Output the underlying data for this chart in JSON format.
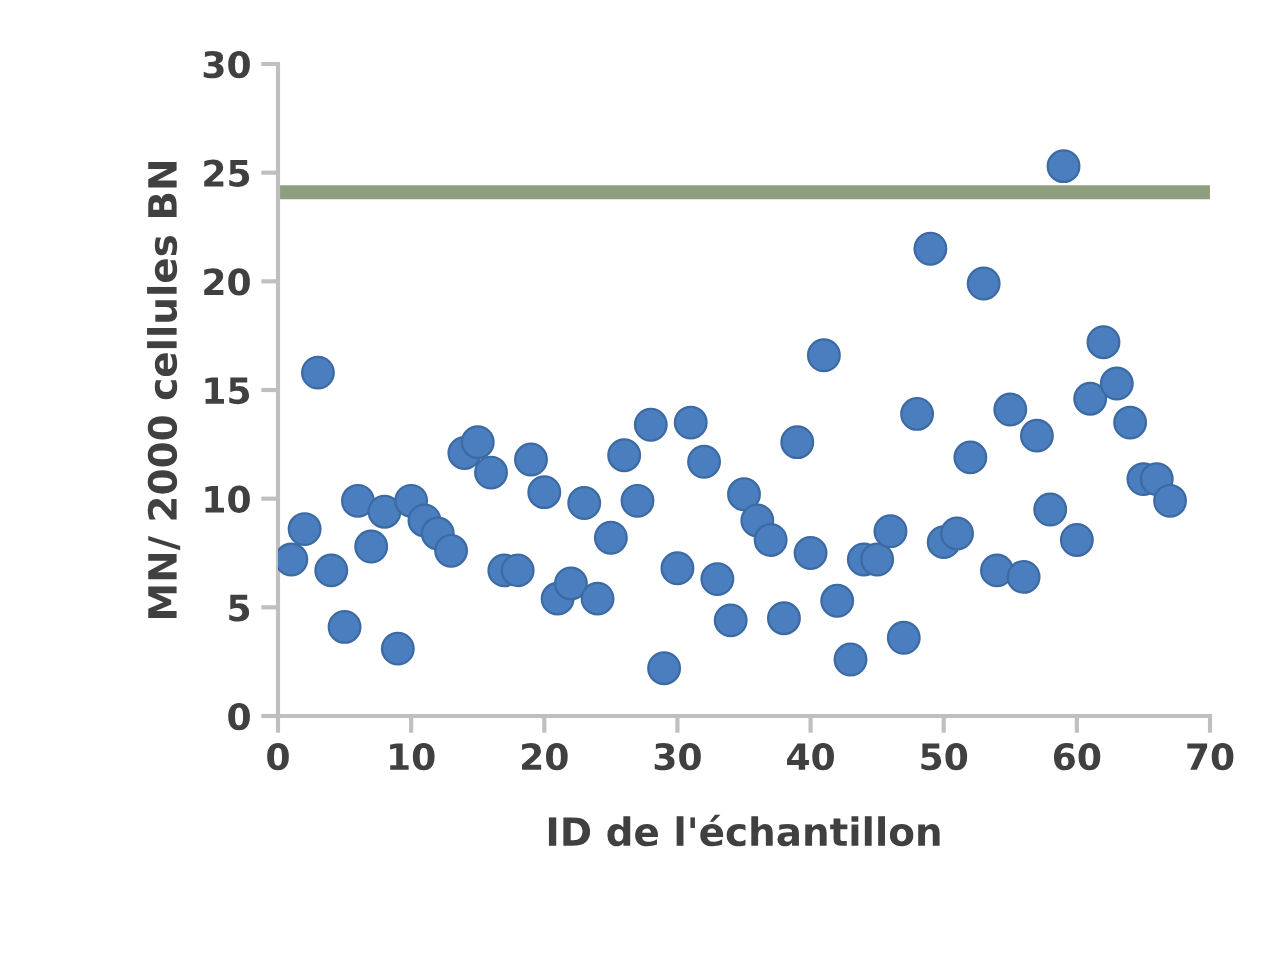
{
  "chart_data": {
    "type": "scatter",
    "xlabel": "ID de l'échantillon",
    "ylabel": "MN/ 2000 cellules BN",
    "x": [
      1,
      2,
      3,
      4,
      5,
      6,
      7,
      8,
      9,
      10,
      11,
      12,
      13,
      14,
      15,
      16,
      17,
      18,
      19,
      20,
      21,
      22,
      23,
      24,
      25,
      26,
      27,
      28,
      29,
      30,
      31,
      32,
      33,
      34,
      35,
      36,
      37,
      38,
      39,
      40,
      41,
      42,
      43,
      44,
      45,
      46,
      47,
      48,
      49,
      50,
      51,
      52,
      53,
      54,
      55,
      56,
      57,
      58,
      59,
      60,
      61,
      62,
      63,
      64,
      65,
      66,
      67
    ],
    "series": [
      {
        "color": "#4a7ebf",
        "values": [
          7.2,
          8.6,
          15.8,
          6.7,
          4.1,
          9.9,
          7.8,
          9.4,
          3.1,
          9.9,
          9.0,
          8.4,
          7.6,
          12.1,
          12.6,
          11.2,
          6.7,
          6.7,
          11.8,
          10.3,
          5.4,
          6.1,
          9.8,
          5.4,
          8.2,
          12.0,
          9.9,
          13.4,
          2.2,
          6.8,
          13.5,
          11.7,
          6.3,
          4.4,
          10.2,
          9.0,
          8.1,
          4.5,
          12.6,
          7.5,
          16.6,
          5.3,
          2.6,
          7.2,
          7.2,
          8.5,
          3.6,
          13.9,
          21.5,
          8.0,
          8.4,
          11.9,
          19.9,
          6.7,
          14.1,
          6.4,
          12.9,
          9.5,
          25.3,
          8.1,
          14.6,
          17.2,
          15.3,
          13.5,
          10.9,
          10.9,
          9.9
        ]
      }
    ],
    "xlim": [
      0,
      70
    ],
    "xticks": [
      0,
      10,
      20,
      30,
      40,
      50,
      60,
      70
    ],
    "ylim": [
      0,
      30
    ],
    "yticks": [
      0,
      5,
      10,
      15,
      20,
      25,
      30
    ],
    "ref_lines": [
      {
        "axis": "y",
        "value": 24.1,
        "color": "#8f9e7f"
      }
    ],
    "marker": "circle",
    "grid": false,
    "legend": false
  }
}
